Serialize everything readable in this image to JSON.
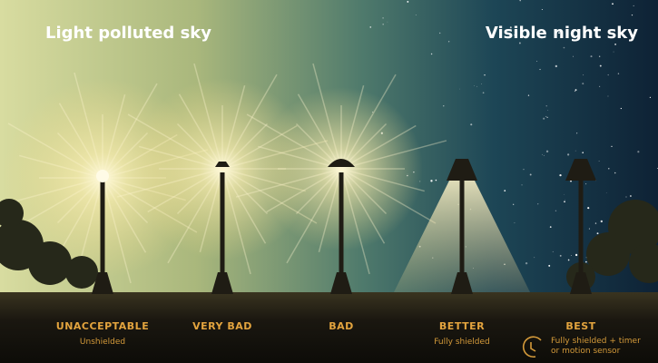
{
  "header": {
    "left": "Light polluted sky",
    "right": "Visible night sky"
  },
  "lamps": [
    {
      "rating": "UNACCEPTABLE",
      "note": "Unshielded"
    },
    {
      "rating": "VERY BAD"
    },
    {
      "rating": "BAD"
    },
    {
      "rating": "BETTER",
      "note": "Fully shielded"
    },
    {
      "rating": "BEST",
      "note": "Fully shielded + timer or motion sensor"
    }
  ]
}
